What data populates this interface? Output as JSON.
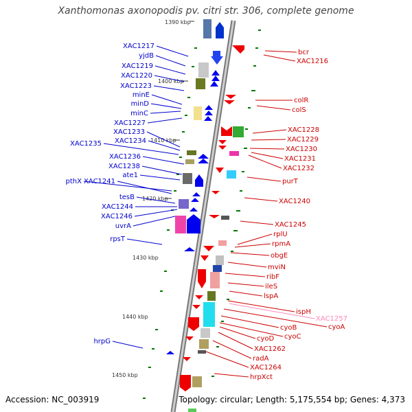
{
  "title": "Xanthomonas axonopodis pv. citri str. 306, complete genome",
  "accession": "Accession: NC_003919",
  "topology": "Topology: circular; Length: 5,175,554 bp; Genes: 4,373",
  "colors": {
    "left_label": "#0000cc",
    "right_label": "#cc0000",
    "highlight_label": "#ff88bb",
    "backbone": "#999999",
    "tick": "#007700"
  },
  "kbp_labels": [
    "1390 kbp",
    "1400 kbp",
    "1410 kbp",
    "1420 kbp",
    "1430 kbp",
    "1440 kbp",
    "1450 kbp"
  ],
  "left_genes": [
    "XAC1217",
    "yjdB",
    "XAC1219",
    "XAC1220",
    "XAC1223",
    "minE",
    "minD",
    "minC",
    "XAC1227",
    "XAC1233",
    "XAC1234",
    "XAC1235",
    "XAC1236",
    "XAC1238",
    "ate1",
    "pthX",
    "XAC1241",
    "tesB",
    "XAC1244",
    "XAC1246",
    "uvrA",
    "rpsT",
    "hrpG"
  ],
  "right_genes": [
    "bcr",
    "XAC1216",
    "colR",
    "colS",
    "XAC1228",
    "XAC1229",
    "XAC1230",
    "XAC1231",
    "XAC1232",
    "purT",
    "XAC1240",
    "XAC1245",
    "rplU",
    "rpmA",
    "obgE",
    "mviN",
    "ribF",
    "ileS",
    "lspA",
    "ispH",
    "XAC1257",
    "cyoA",
    "cyoB",
    "cyoC",
    "cyoD",
    "XAC1262",
    "radA",
    "XAC1264",
    "hrpXct"
  ]
}
